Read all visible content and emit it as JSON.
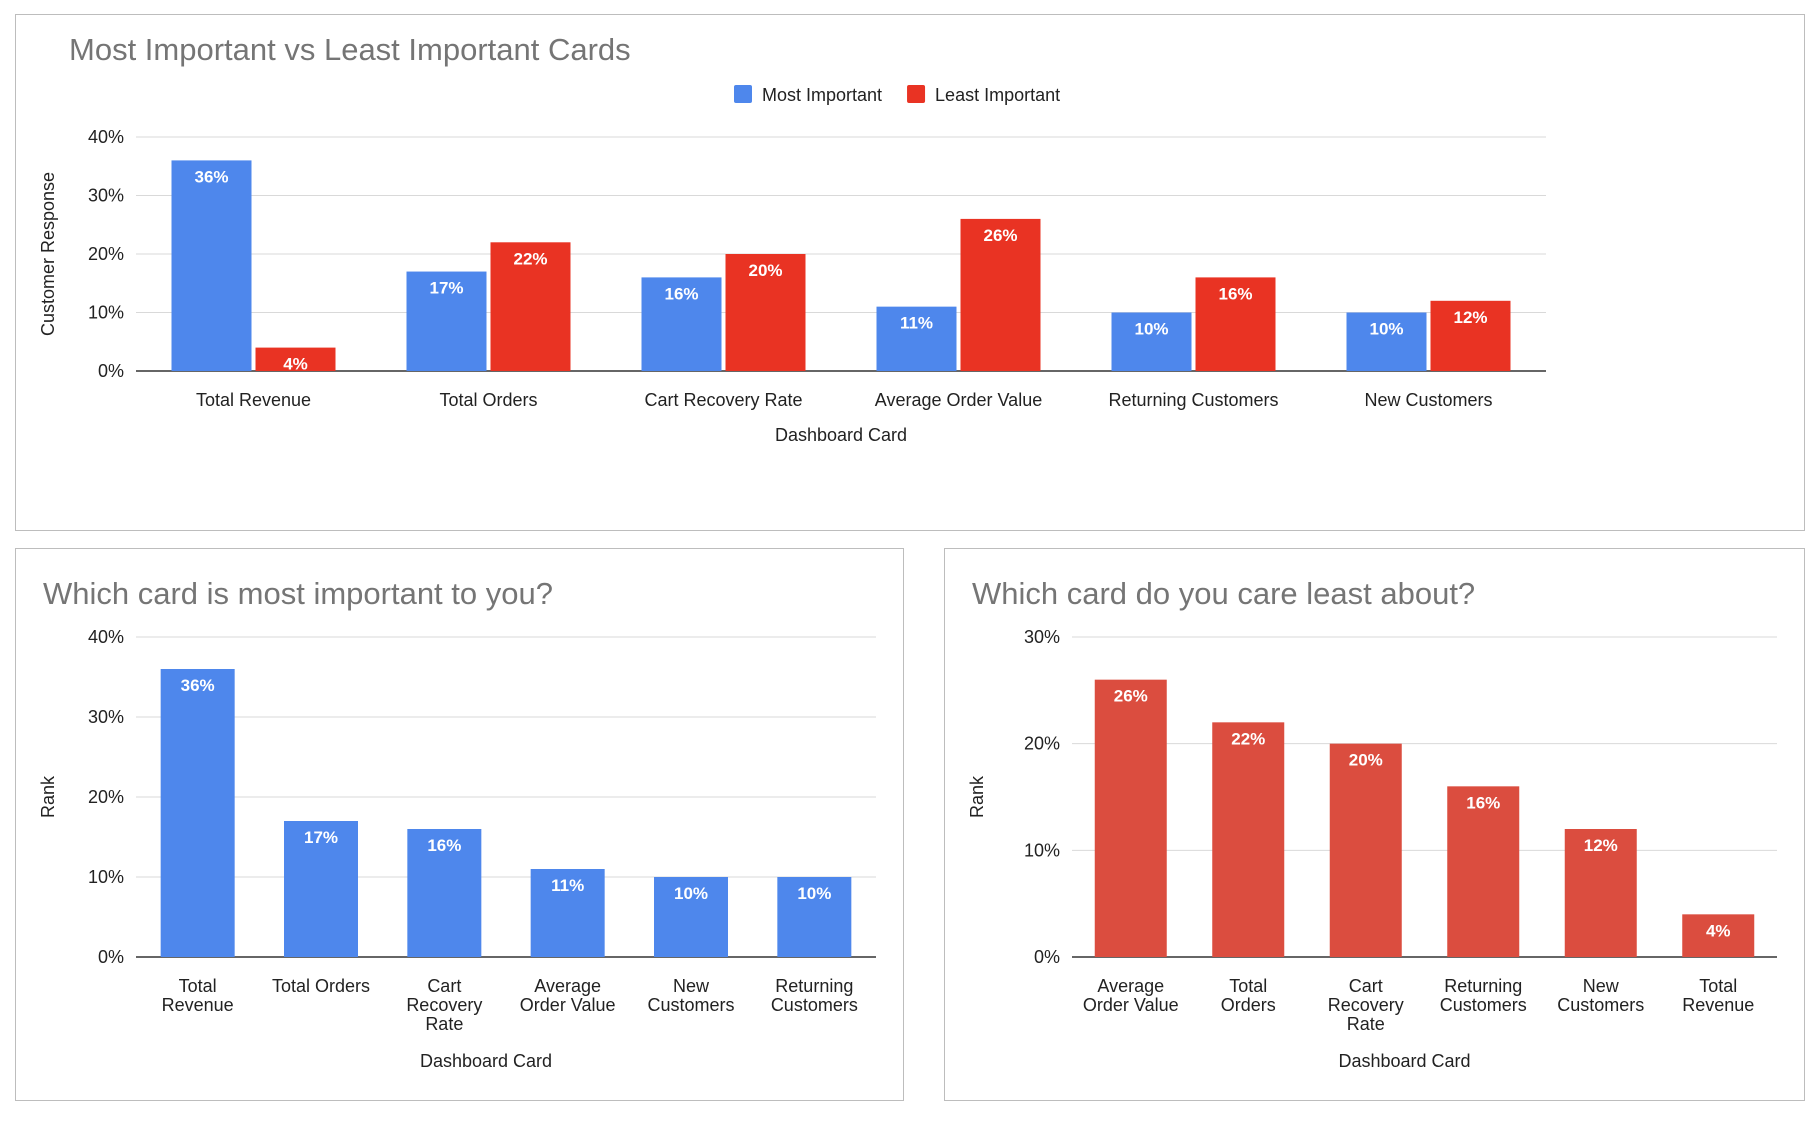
{
  "chart_data": [
    {
      "id": "top",
      "type": "bar",
      "title": "Most Important vs Least Important Cards",
      "xlabel": "Dashboard Card",
      "ylabel": "Customer Response",
      "ylim": [
        0,
        40
      ],
      "yticks": [
        "0%",
        "10%",
        "20%",
        "30%",
        "40%"
      ],
      "grid": true,
      "legend": "top",
      "categories": [
        [
          "Total Revenue"
        ],
        [
          "Total Orders"
        ],
        [
          "Cart Recovery Rate"
        ],
        [
          "Average Order Value"
        ],
        [
          "Returning Customers"
        ],
        [
          "New Customers"
        ]
      ],
      "series": [
        {
          "name": "Most Important",
          "color": "#4e87ec",
          "values": [
            36,
            17,
            16,
            11,
            10,
            10
          ],
          "labels": [
            "36%",
            "17%",
            "16%",
            "11%",
            "10%",
            "10%"
          ]
        },
        {
          "name": "Least Important",
          "color": "#e93323",
          "values": [
            4,
            22,
            20,
            26,
            16,
            12
          ],
          "labels": [
            "4%",
            "22%",
            "20%",
            "26%",
            "16%",
            "12%"
          ]
        }
      ]
    },
    {
      "id": "left",
      "type": "bar",
      "title": "Which card is most important to you?",
      "xlabel": "Dashboard Card",
      "ylabel": "Rank",
      "ylim": [
        0,
        40
      ],
      "yticks": [
        "0%",
        "10%",
        "20%",
        "30%",
        "40%"
      ],
      "grid": true,
      "categories": [
        [
          "Total",
          "Revenue"
        ],
        [
          "Total Orders"
        ],
        [
          "Cart",
          "Recovery",
          "Rate"
        ],
        [
          "Average",
          "Order Value"
        ],
        [
          "New",
          "Customers"
        ],
        [
          "Returning",
          "Customers"
        ]
      ],
      "series": [
        {
          "color": "#4e87ec",
          "values": [
            36,
            17,
            16,
            11,
            10,
            10
          ],
          "labels": [
            "36%",
            "17%",
            "16%",
            "11%",
            "10%",
            "10%"
          ]
        }
      ]
    },
    {
      "id": "right",
      "type": "bar",
      "title": "Which card do you care least about?",
      "xlabel": "Dashboard Card",
      "ylabel": "Rank",
      "ylim": [
        0,
        30
      ],
      "yticks": [
        "0%",
        "10%",
        "20%",
        "30%"
      ],
      "grid": true,
      "categories": [
        [
          "Average",
          "Order Value"
        ],
        [
          "Total",
          "Orders"
        ],
        [
          "Cart",
          "Recovery",
          "Rate"
        ],
        [
          "Returning",
          "Customers"
        ],
        [
          "New",
          "Customers"
        ],
        [
          "Total",
          "Revenue"
        ]
      ],
      "series": [
        {
          "color": "#db4d3f",
          "values": [
            26,
            22,
            20,
            16,
            12,
            4
          ],
          "labels": [
            "26%",
            "22%",
            "20%",
            "16%",
            "12%",
            "4%"
          ]
        }
      ]
    }
  ]
}
